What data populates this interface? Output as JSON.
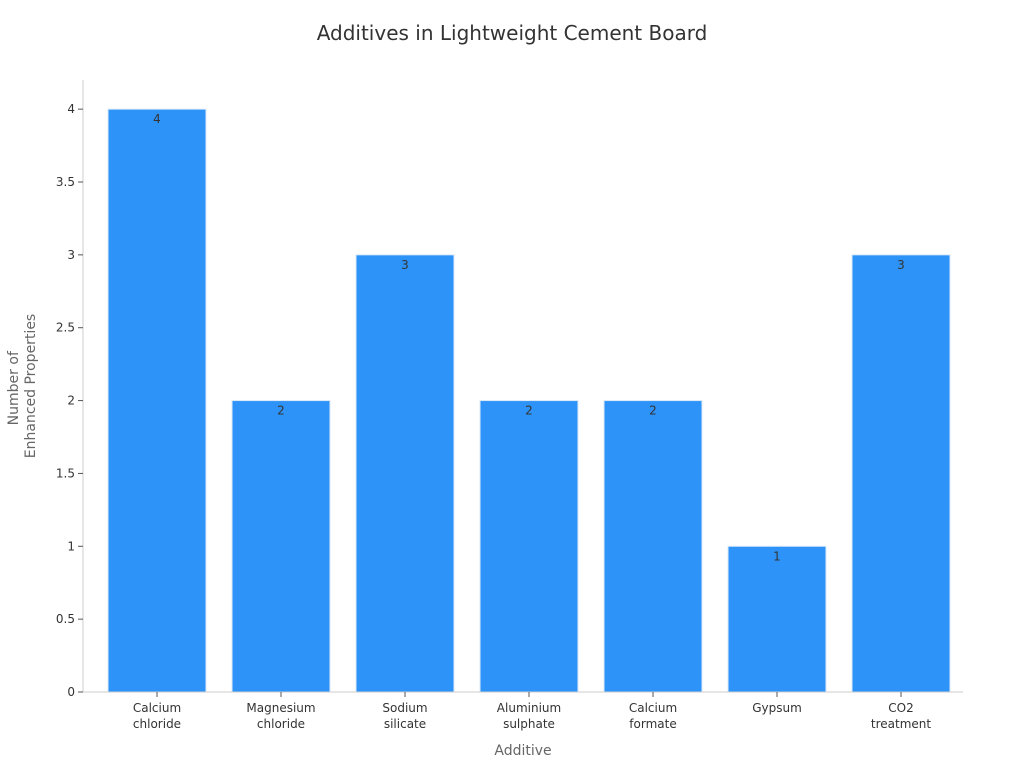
{
  "chart_data": {
    "type": "bar",
    "title": "Additives in Lightweight Cement Board",
    "xlabel": "Additive",
    "ylabel_lines": [
      "Number of",
      "Enhanced Properties"
    ],
    "categories": [
      [
        "Calcium",
        "chloride"
      ],
      [
        "Magnesium",
        "chloride"
      ],
      [
        "Sodium",
        "silicate"
      ],
      [
        "Aluminium",
        "sulphate"
      ],
      [
        "Calcium",
        "formate"
      ],
      [
        "Gypsum"
      ],
      [
        "CO2",
        "treatment"
      ]
    ],
    "values": [
      4,
      2,
      3,
      2,
      2,
      1,
      3
    ],
    "data_labels": [
      "4",
      "2",
      "3",
      "2",
      "2",
      "1",
      "3"
    ],
    "yticks": [
      0,
      0.5,
      1,
      1.5,
      2,
      2.5,
      3,
      3.5,
      4
    ],
    "ytick_labels": [
      "0",
      "0.5",
      "1",
      "1.5",
      "2",
      "2.5",
      "3",
      "3.5",
      "4"
    ],
    "ylim": [
      0,
      4.2
    ],
    "grid": false,
    "legend": "none",
    "colors": {
      "bar": "#2e93f8",
      "bar_edge": "#d9e8f7",
      "axis": "#cccccc",
      "text": "#333333"
    }
  }
}
